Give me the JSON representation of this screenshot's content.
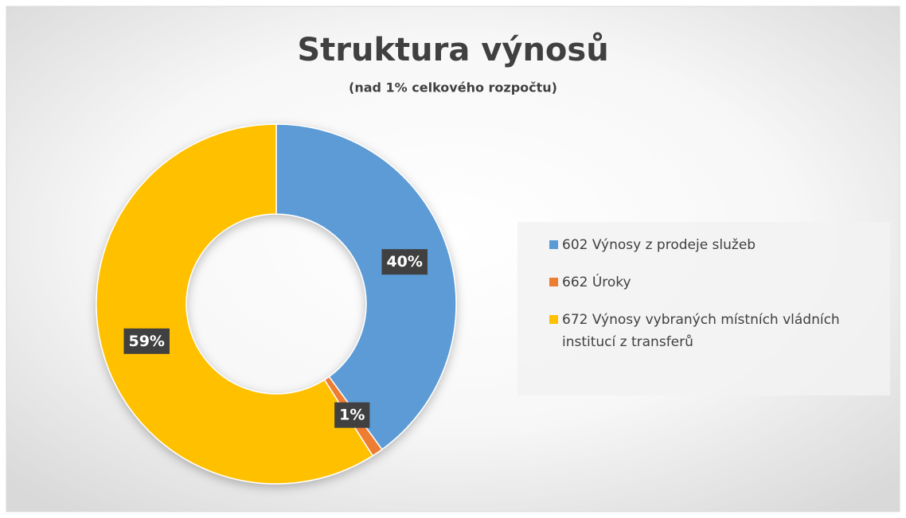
{
  "chart_data": {
    "type": "donut",
    "title": "Struktura výnosů",
    "subtitle": "(nad 1% celkového rozpočtu)",
    "categories": [
      "602 Výnosy z prodeje služeb",
      "662 Úroky",
      "672 Výnosy vybraných místních vládních institucí z transferů"
    ],
    "values": [
      40,
      1,
      59
    ],
    "value_labels": [
      "40%",
      "1%",
      "59%"
    ],
    "colors": [
      "#5b9bd5",
      "#ed7d31",
      "#ffc000"
    ],
    "legend": "right"
  }
}
